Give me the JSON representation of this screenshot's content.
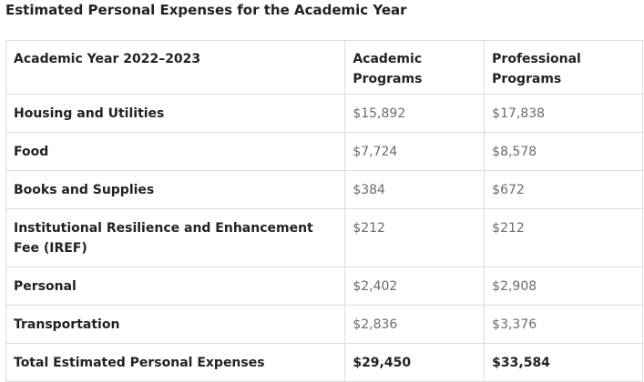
{
  "caption": "Estimated Personal Expenses for the Academic Year",
  "table": {
    "headers": [
      "Academic Year 2022–2023",
      "Academic Programs",
      "Professional Programs"
    ],
    "header_lines": [
      [
        "Academic Year 2022–2023"
      ],
      [
        "Academic",
        "Programs"
      ],
      [
        "Professional",
        "Programs"
      ]
    ],
    "rows": [
      {
        "label": "Housing and Utilities",
        "academic": "$15,892",
        "professional": "$17,838"
      },
      {
        "label": "Food",
        "academic": "$7,724",
        "professional": "$8,578"
      },
      {
        "label": "Books and Supplies",
        "academic": "$384",
        "professional": "$672"
      },
      {
        "label": "Institutional Resilience and Enhancement Fee (IREF)",
        "academic": "$212",
        "professional": "$212"
      },
      {
        "label": "Personal",
        "academic": "$2,402",
        "professional": "$2,908"
      },
      {
        "label": "Transportation",
        "academic": "$2,836",
        "professional": "$3,376"
      }
    ],
    "total": {
      "label": "Total Estimated Personal Expenses",
      "academic": "$29,450",
      "professional": "$33,584"
    }
  }
}
